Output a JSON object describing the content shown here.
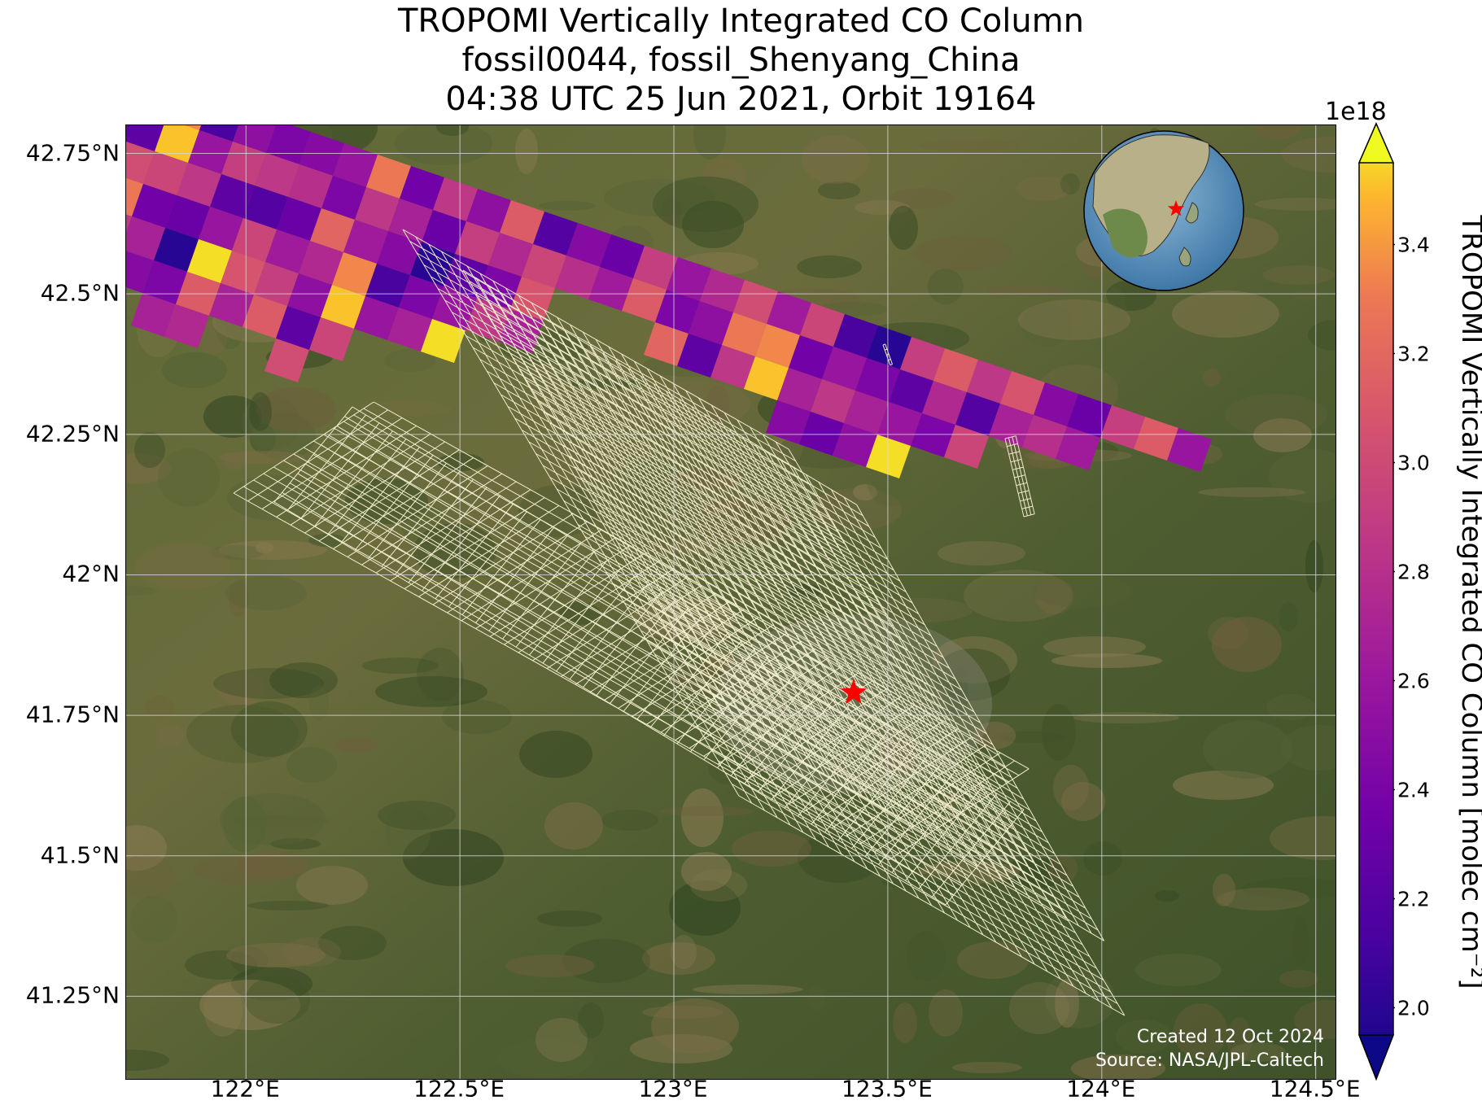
{
  "title": {
    "line1": "TROPOMI Vertically Integrated CO Column",
    "line2": "fossil0044, fossil_Shenyang_China",
    "line3": "04:38 UTC 25 Jun 2021, Orbit 19164"
  },
  "axes": {
    "lat_ticks": [
      "42.75°N",
      "42.5°N",
      "42.25°N",
      "42°N",
      "41.75°N",
      "41.5°N",
      "41.25°N"
    ],
    "lat_values": [
      42.75,
      42.5,
      42.25,
      42.0,
      41.75,
      41.5,
      41.25
    ],
    "lon_ticks": [
      "122°E",
      "122.5°E",
      "123°E",
      "123.5°E",
      "124°E",
      "124.5°E"
    ],
    "lon_values": [
      122.0,
      122.5,
      123.0,
      123.5,
      124.0,
      124.5
    ],
    "lat_range": [
      41.1,
      42.8
    ],
    "lon_range": [
      121.72,
      124.55
    ]
  },
  "colorbar": {
    "label": "TROPOMI Vertically Integrated CO Column [molec cm⁻²]",
    "multiplier": "1e18",
    "ticks": [
      "2.0",
      "2.2",
      "2.4",
      "2.6",
      "2.8",
      "3.0",
      "3.2",
      "3.4"
    ],
    "range": [
      1.95,
      3.55
    ],
    "colormap": "plasma",
    "extend": "both"
  },
  "site": {
    "name": "fossil_Shenyang_China",
    "lat": 41.79,
    "lon": 123.42,
    "marker_color": "#ff0000"
  },
  "credits": {
    "created": "Created 12 Oct 2024",
    "source": "Source: NASA/JPL-Caltech"
  },
  "inset": {
    "projection": "orthographic globe",
    "marker_color": "#ff0000"
  },
  "colors": {
    "grid": "#d9d9d9",
    "target_outline": "#f2eed0",
    "basemap_green": "#4d5a2e"
  }
}
